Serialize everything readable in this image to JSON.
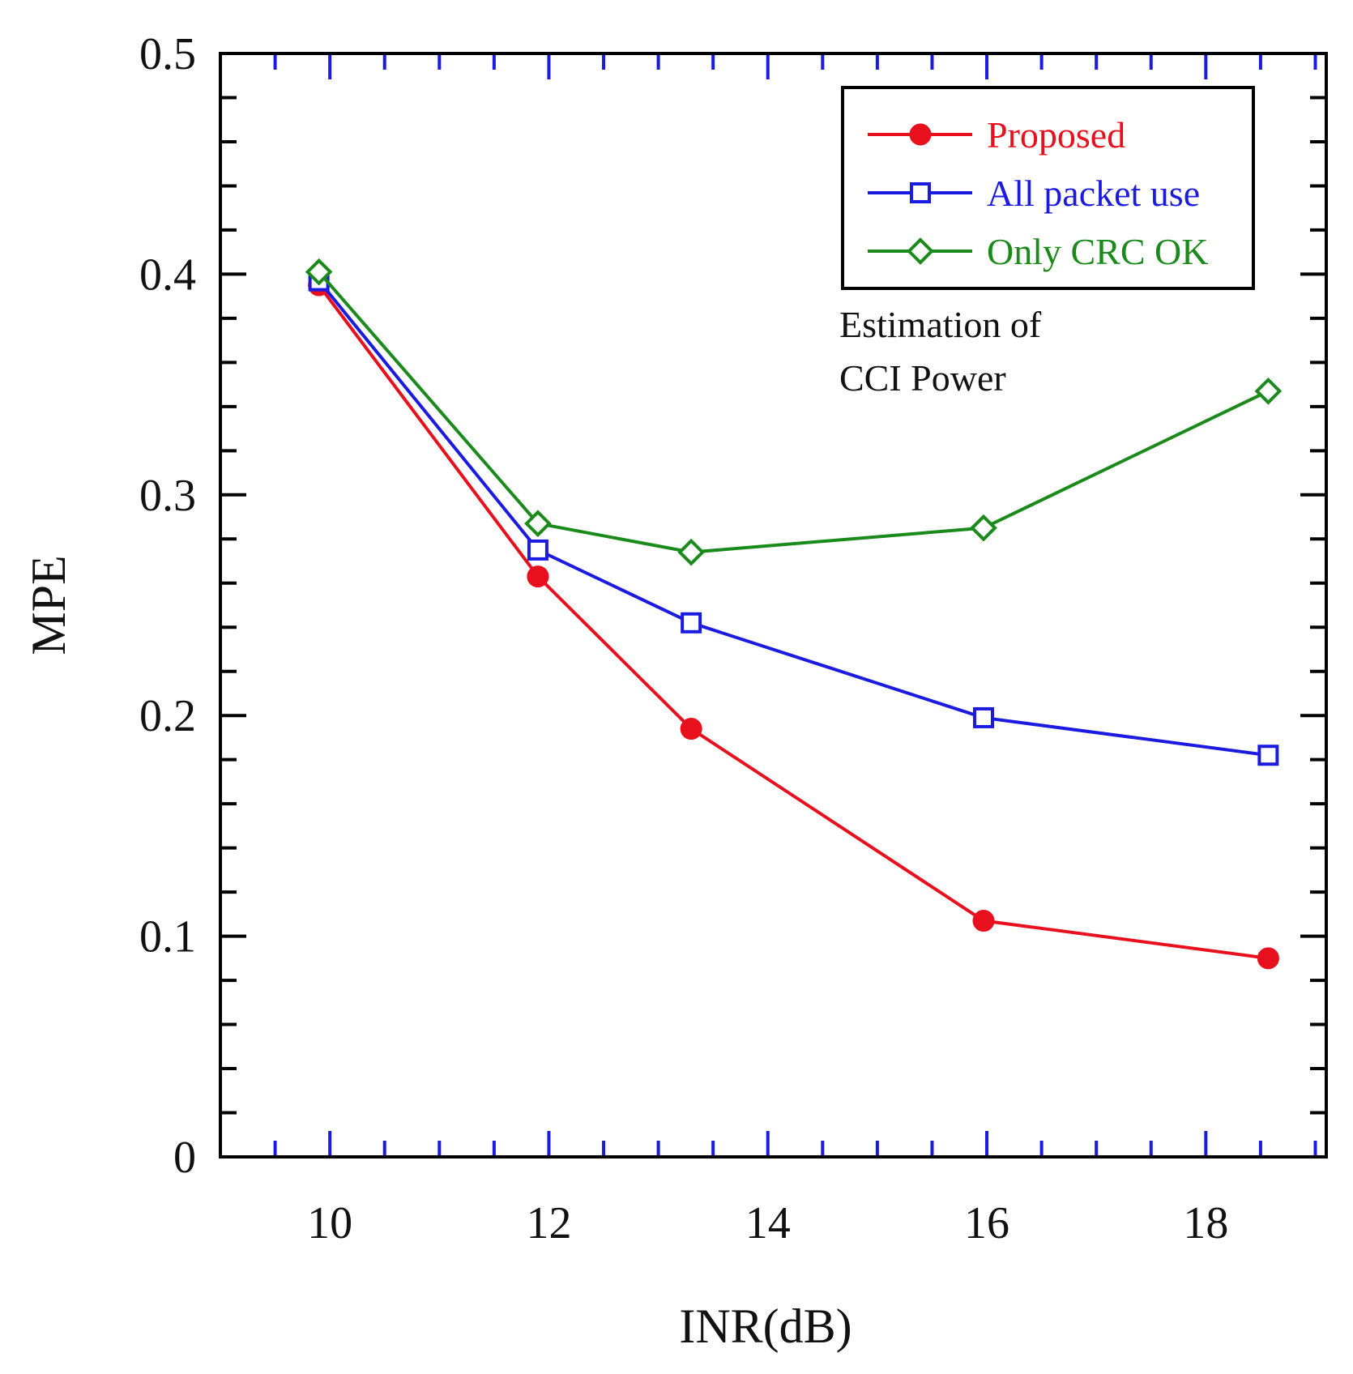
{
  "chart_data": {
    "type": "line",
    "xlabel": "INR(dB)",
    "ylabel": "MPE",
    "xlim": [
      9,
      19.1
    ],
    "ylim": [
      0,
      0.5
    ],
    "x_ticks": [
      10,
      12,
      14,
      16,
      18
    ],
    "x_tick_labels": [
      "10",
      "12",
      "14",
      "16",
      "18"
    ],
    "y_ticks": [
      0,
      0.1,
      0.2,
      0.3,
      0.4,
      0.5
    ],
    "y_tick_labels": [
      "0",
      "0.1",
      "0.2",
      "0.3",
      "0.4",
      "0.5"
    ],
    "legend_position": "top-right",
    "annotation": [
      "Estimation of",
      "CCI Power"
    ],
    "series": [
      {
        "name": "Proposed",
        "color": "#e8101c",
        "marker": "filled-circle",
        "x": [
          9.9,
          11.9,
          13.3,
          15.97,
          18.57
        ],
        "y": [
          0.395,
          0.263,
          0.194,
          0.107,
          0.09
        ]
      },
      {
        "name": "All packet use",
        "color": "#1a1ae0",
        "marker": "open-square",
        "x": [
          9.9,
          11.9,
          13.3,
          15.97,
          18.57
        ],
        "y": [
          0.397,
          0.275,
          0.242,
          0.199,
          0.182
        ]
      },
      {
        "name": "Only CRC OK",
        "color": "#1a8a1a",
        "marker": "open-diamond",
        "x": [
          9.9,
          11.9,
          13.3,
          15.97,
          18.57
        ],
        "y": [
          0.401,
          0.287,
          0.274,
          0.285,
          0.347
        ]
      }
    ]
  }
}
